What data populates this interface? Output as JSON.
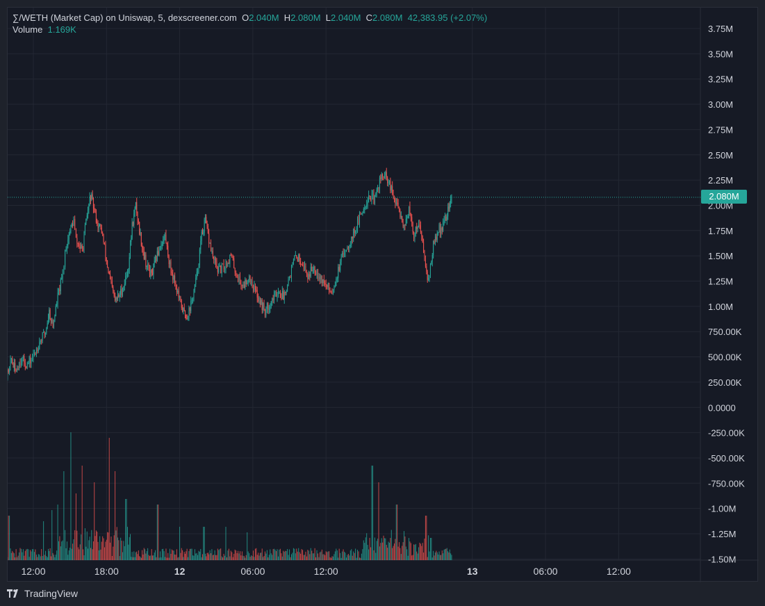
{
  "header": {
    "symbol": "∑/WETH (Market Cap) on Uniswap, 5, dexscreener.com",
    "open_label": "O",
    "open": "2.040M",
    "high_label": "H",
    "high": "2.080M",
    "low_label": "L",
    "low": "2.040M",
    "close_label": "C",
    "close": "2.080M",
    "change": "42,383.95 (+2.07%)",
    "volume_label": "Volume",
    "volume_value": "1.169K"
  },
  "current_price_tag": "2.080M",
  "brand": "TradingView",
  "colors": {
    "up": "#26a69a",
    "down": "#ef5350",
    "background": "#161a25",
    "grid": "#232733",
    "text": "#d1d4dc"
  },
  "chart_data": {
    "type": "candlestick",
    "interval_minutes": 5,
    "y_unit": "market cap (USD)",
    "y_tick_labels": [
      "3.75M",
      "3.50M",
      "3.25M",
      "3.00M",
      "2.75M",
      "2.50M",
      "2.25M",
      "2.00M",
      "1.75M",
      "1.50M",
      "1.25M",
      "1.00M",
      "750.00K",
      "500.00K",
      "250.00K",
      "0.0000",
      "-250.00K",
      "-500.00K",
      "-750.00K",
      "-1.00M",
      "-1.25M",
      "-1.50M"
    ],
    "y_tick_values": [
      3750000,
      3500000,
      3250000,
      3000000,
      2750000,
      2500000,
      2250000,
      2000000,
      1750000,
      1500000,
      1250000,
      1000000,
      750000,
      500000,
      250000,
      0,
      -250000,
      -500000,
      -750000,
      -1000000,
      -1250000,
      -1500000
    ],
    "ylim": [
      -1500000,
      3750000
    ],
    "x_tick_labels": [
      "12:00",
      "18:00",
      "12",
      "06:00",
      "12:00",
      "13",
      "06:00",
      "12:00"
    ],
    "x_tick_hours": [
      12,
      18,
      24,
      30,
      36,
      48,
      54,
      60
    ],
    "x_bold_labels": [
      "12",
      "13"
    ],
    "xlim_hours": [
      7.65,
      62.4
    ],
    "series_points": [
      [
        9.5,
        0.01
      ],
      [
        9.55,
        0.45
      ],
      [
        9.8,
        0.3
      ],
      [
        10.2,
        0.48
      ],
      [
        10.5,
        0.36
      ],
      [
        11,
        0.48
      ],
      [
        11.5,
        0.42
      ],
      [
        12,
        0.5
      ],
      [
        12.5,
        0.65
      ],
      [
        13,
        0.75
      ],
      [
        13.3,
        0.95
      ],
      [
        13.6,
        0.8
      ],
      [
        14,
        1.1
      ],
      [
        14.4,
        1.3
      ],
      [
        14.6,
        1.55
      ],
      [
        15,
        1.75
      ],
      [
        15.3,
        1.85
      ],
      [
        15.5,
        1.65
      ],
      [
        16,
        1.55
      ],
      [
        16.4,
        1.9
      ],
      [
        16.7,
        2.1
      ],
      [
        17,
        1.95
      ],
      [
        17.3,
        1.8
      ],
      [
        17.6,
        1.75
      ],
      [
        18,
        1.45
      ],
      [
        18.3,
        1.25
      ],
      [
        18.7,
        1.05
      ],
      [
        19,
        1.1
      ],
      [
        19.4,
        1.2
      ],
      [
        19.8,
        1.4
      ],
      [
        20.1,
        1.8
      ],
      [
        20.4,
        2.0
      ],
      [
        20.7,
        1.75
      ],
      [
        21,
        1.55
      ],
      [
        21.3,
        1.4
      ],
      [
        21.7,
        1.3
      ],
      [
        22,
        1.45
      ],
      [
        22.4,
        1.6
      ],
      [
        22.8,
        1.7
      ],
      [
        23.2,
        1.4
      ],
      [
        23.6,
        1.25
      ],
      [
        24,
        1.05
      ],
      [
        24.3,
        0.95
      ],
      [
        24.6,
        0.9
      ],
      [
        25,
        1.05
      ],
      [
        25.4,
        1.3
      ],
      [
        25.8,
        1.7
      ],
      [
        26.1,
        1.85
      ],
      [
        26.4,
        1.65
      ],
      [
        26.8,
        1.45
      ],
      [
        27.2,
        1.35
      ],
      [
        27.7,
        1.4
      ],
      [
        28.2,
        1.5
      ],
      [
        28.7,
        1.3
      ],
      [
        29.2,
        1.2
      ],
      [
        29.7,
        1.3
      ],
      [
        30.2,
        1.15
      ],
      [
        30.6,
        1.05
      ],
      [
        31,
        0.95
      ],
      [
        31.5,
        1.05
      ],
      [
        32,
        1.15
      ],
      [
        32.5,
        1.1
      ],
      [
        33,
        1.3
      ],
      [
        33.5,
        1.5
      ],
      [
        34,
        1.45
      ],
      [
        34.5,
        1.3
      ],
      [
        35,
        1.4
      ],
      [
        35.5,
        1.3
      ],
      [
        36,
        1.2
      ],
      [
        36.5,
        1.15
      ],
      [
        37,
        1.35
      ],
      [
        37.5,
        1.55
      ],
      [
        38,
        1.65
      ],
      [
        38.5,
        1.8
      ],
      [
        39,
        1.95
      ],
      [
        39.5,
        2.1
      ],
      [
        40,
        2.05
      ],
      [
        40.4,
        2.25
      ],
      [
        40.8,
        2.3
      ],
      [
        41.2,
        2.2
      ],
      [
        41.6,
        2.05
      ],
      [
        42,
        1.95
      ],
      [
        42.4,
        1.8
      ],
      [
        42.8,
        1.95
      ],
      [
        43.2,
        1.7
      ],
      [
        43.6,
        1.85
      ],
      [
        44,
        1.55
      ],
      [
        44.4,
        1.25
      ],
      [
        44.8,
        1.6
      ],
      [
        45.2,
        1.75
      ],
      [
        45.6,
        1.8
      ],
      [
        46,
        1.95
      ],
      [
        46.3,
        2.08
      ]
    ],
    "volume_estimates": [
      [
        9.55,
        900
      ],
      [
        9.7,
        1100
      ],
      [
        10.0,
        400
      ],
      [
        12.8,
        350
      ],
      [
        13.5,
        450
      ],
      [
        14.0,
        500
      ],
      [
        14.5,
        800
      ],
      [
        15.05,
        1150
      ],
      [
        15.5,
        600
      ],
      [
        16.0,
        850
      ],
      [
        17.0,
        700
      ],
      [
        18.2,
        1100
      ],
      [
        18.7,
        800
      ],
      [
        19.6,
        550
      ],
      [
        22.2,
        500
      ],
      [
        24.0,
        300
      ],
      [
        26.0,
        300
      ],
      [
        27.8,
        300
      ],
      [
        29.5,
        250
      ],
      [
        39.8,
        850
      ],
      [
        40.3,
        700
      ],
      [
        41.8,
        500
      ],
      [
        44.2,
        400
      ],
      [
        44.6,
        200
      ]
    ]
  }
}
